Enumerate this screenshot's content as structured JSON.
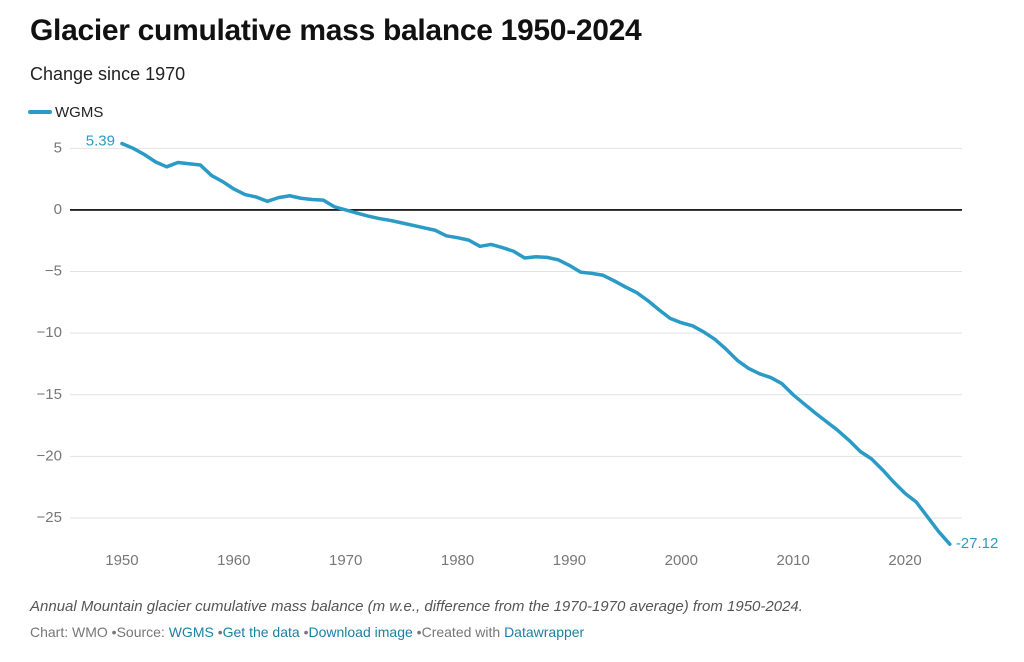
{
  "chart_data": {
    "type": "line",
    "title": "Glacier cumulative mass balance 1950-2024",
    "subtitle": "Change since 1970",
    "notes": "Annual Mountain glacier cumulative mass balance (m w.e., difference from the 1970-1970 average) from 1950-2024.",
    "footer": {
      "chart": "Chart: WMO",
      "source_label": "Source:",
      "source": "WGMS",
      "get_data": "Get the data",
      "download": "Download image",
      "created": "Created with",
      "tool": "Datawrapper"
    },
    "x": [
      1950,
      1951,
      1952,
      1953,
      1954,
      1955,
      1956,
      1957,
      1958,
      1959,
      1960,
      1961,
      1962,
      1963,
      1964,
      1965,
      1966,
      1967,
      1968,
      1969,
      1970,
      1971,
      1972,
      1973,
      1974,
      1975,
      1976,
      1977,
      1978,
      1979,
      1980,
      1981,
      1982,
      1983,
      1984,
      1985,
      1986,
      1987,
      1988,
      1989,
      1990,
      1991,
      1992,
      1993,
      1994,
      1995,
      1996,
      1997,
      1998,
      1999,
      2000,
      2001,
      2002,
      2003,
      2004,
      2005,
      2006,
      2007,
      2008,
      2009,
      2010,
      2011,
      2012,
      2013,
      2014,
      2015,
      2016,
      2017,
      2018,
      2019,
      2020,
      2021,
      2022,
      2023,
      2024
    ],
    "series": [
      {
        "name": "WGMS",
        "color": "#2a9bc6",
        "values": [
          5.39,
          5.0,
          4.5,
          3.9,
          3.5,
          3.85,
          3.75,
          3.65,
          2.8,
          2.3,
          1.7,
          1.25,
          1.05,
          0.7,
          1.0,
          1.15,
          0.95,
          0.85,
          0.8,
          0.25,
          0,
          -0.25,
          -0.5,
          -0.7,
          -0.85,
          -1.05,
          -1.25,
          -1.45,
          -1.65,
          -2.1,
          -2.25,
          -2.45,
          -2.95,
          -2.8,
          -3.05,
          -3.35,
          -3.9,
          -3.8,
          -3.85,
          -4.05,
          -4.5,
          -5.05,
          -5.15,
          -5.3,
          -5.75,
          -6.25,
          -6.7,
          -7.35,
          -8.1,
          -8.8,
          -9.15,
          -9.4,
          -9.9,
          -10.5,
          -11.3,
          -12.2,
          -12.85,
          -13.3,
          -13.6,
          -14.1,
          -15.0,
          -15.75,
          -16.5,
          -17.2,
          -17.9,
          -18.7,
          -19.6,
          -20.2,
          -21.1,
          -22.1,
          -23.0,
          -23.7,
          -24.9,
          -26.1,
          -27.12
        ]
      }
    ],
    "xlim": [
      1945,
      2025
    ],
    "xticks": [
      1950,
      1960,
      1970,
      1980,
      1990,
      2000,
      2010,
      2020
    ],
    "ylim": [
      -28,
      6
    ],
    "yticks": [
      5,
      0,
      {
        "value": -5,
        "label": "−5"
      },
      {
        "value": -10,
        "label": "−10"
      },
      {
        "value": -15,
        "label": "−15"
      },
      {
        "value": -20,
        "label": "−20"
      },
      {
        "value": -25,
        "label": "−25"
      }
    ],
    "grid": true,
    "zero_line": true,
    "legend": "top-left"
  }
}
